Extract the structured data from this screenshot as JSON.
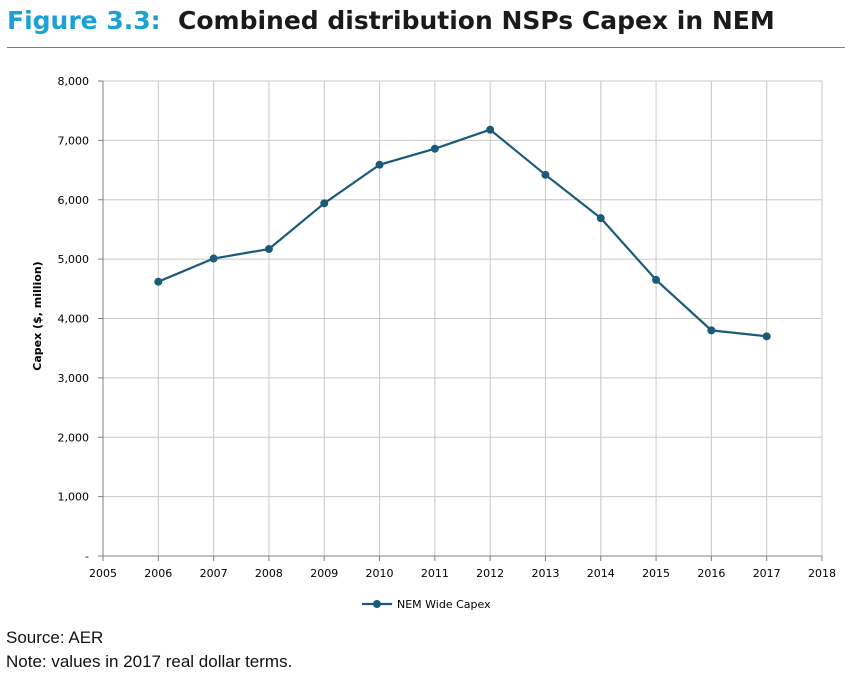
{
  "header": {
    "figure_label": "Figure 3.3:",
    "figure_title": "Combined distribution NSPs Capex in NEM"
  },
  "footer": {
    "source": "Source: AER",
    "note": "Note: values in 2017 real dollar terms."
  },
  "colors": {
    "accent": "#1ba1d6",
    "series": "#1b5b7a",
    "grid": "#c8c8c8"
  },
  "chart_data": {
    "type": "line",
    "ylabel": "Capex ($, million)",
    "xlabel": "",
    "xlim": [
      2005,
      2018
    ],
    "ylim": [
      0,
      8000
    ],
    "x_ticks": [
      2005,
      2006,
      2007,
      2008,
      2009,
      2010,
      2011,
      2012,
      2013,
      2014,
      2015,
      2016,
      2017,
      2018
    ],
    "x_tick_labels": [
      "2005",
      "2006",
      "2007",
      "2008",
      "2009",
      "2010",
      "2011",
      "2012",
      "2013",
      "2014",
      "2015",
      "2016",
      "2017",
      "2018"
    ],
    "y_ticks": [
      0,
      1000,
      2000,
      3000,
      4000,
      5000,
      6000,
      7000,
      8000
    ],
    "y_tick_labels": [
      "-",
      "1,000",
      "2,000",
      "3,000",
      "4,000",
      "5,000",
      "6,000",
      "7,000",
      "8,000"
    ],
    "grid": true,
    "legend_position": "bottom",
    "series": [
      {
        "name": "NEM Wide Capex",
        "x": [
          2006,
          2007,
          2008,
          2009,
          2010,
          2011,
          2012,
          2013,
          2014,
          2015,
          2016,
          2017
        ],
        "values": [
          4620,
          5010,
          5170,
          5940,
          6590,
          6860,
          7180,
          6420,
          5690,
          4650,
          3800,
          3700
        ]
      }
    ]
  }
}
